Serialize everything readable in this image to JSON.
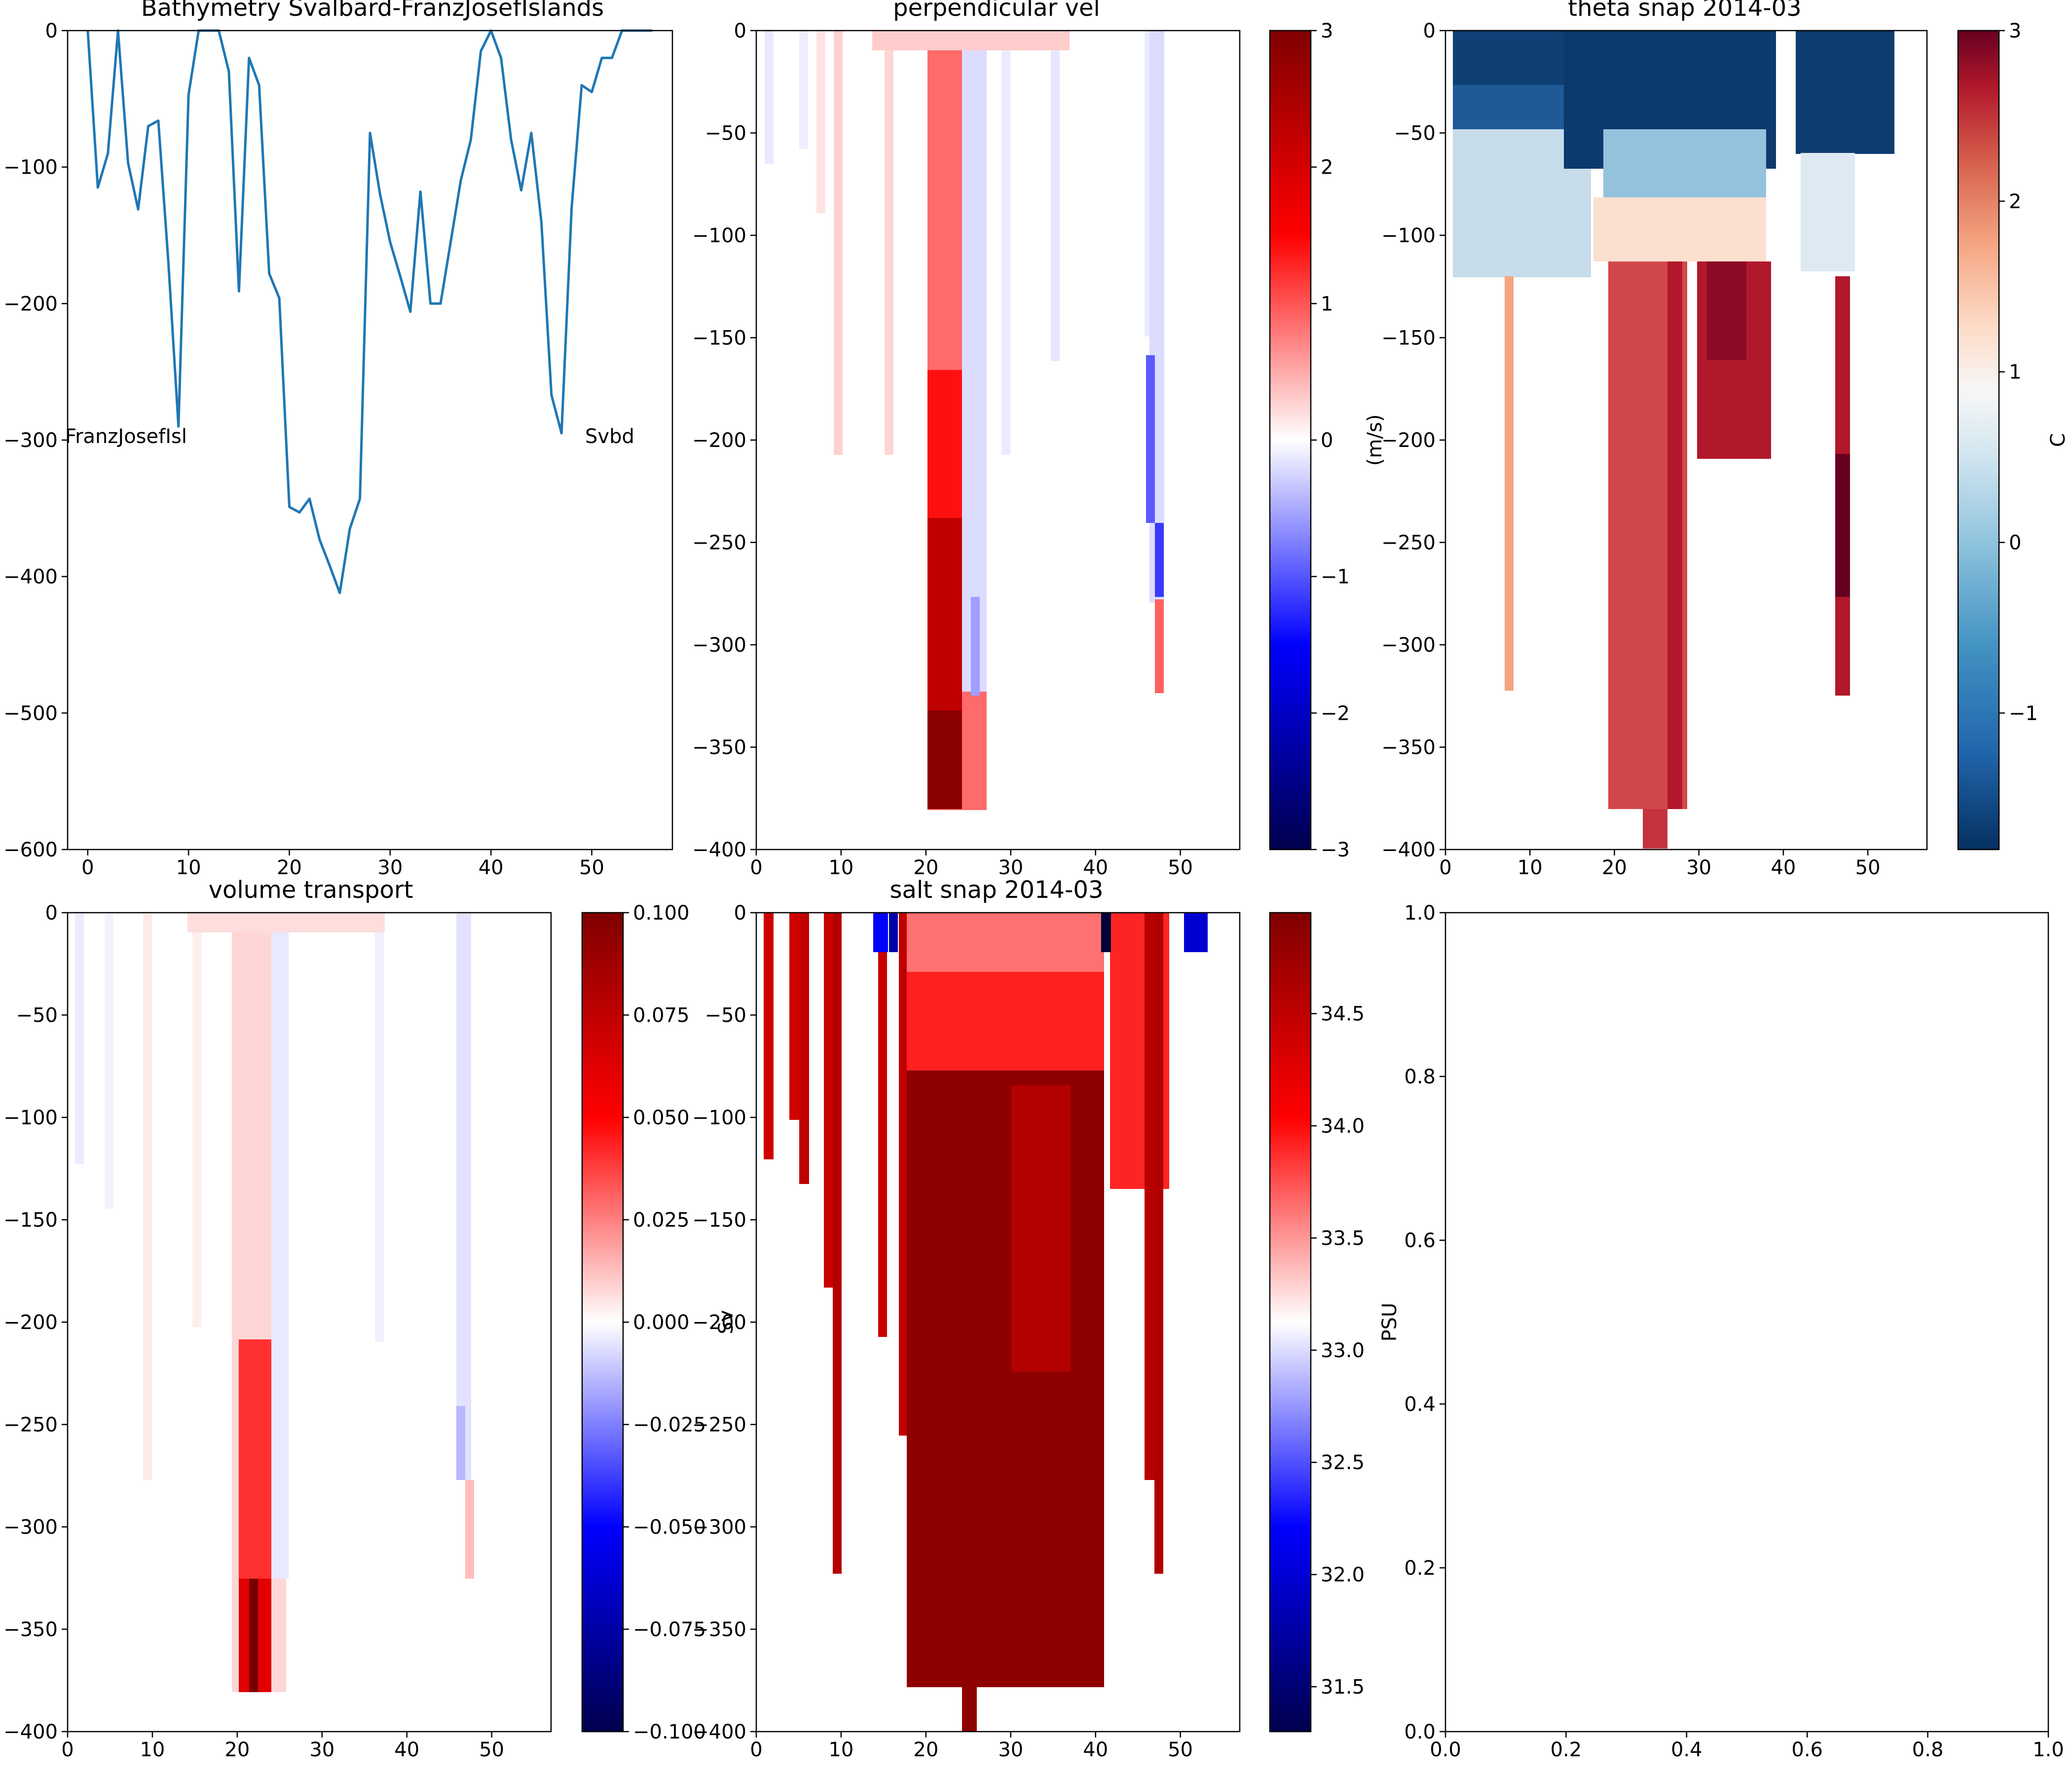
{
  "figure": {
    "panels": [
      {
        "id": "bathy",
        "title": "Bathymetry Svalbard-FranzJosefIslands"
      },
      {
        "id": "vel",
        "title": "perpendicular vel"
      },
      {
        "id": "theta",
        "title": "theta snap 2014-03"
      },
      {
        "id": "vol",
        "title": "volume transport"
      },
      {
        "id": "salt",
        "title": "salt snap 2014-03"
      },
      {
        "id": "empty",
        "title": ""
      }
    ]
  },
  "chart_data": [
    {
      "type": "line",
      "title": "Bathymetry Svalbard-FranzJosefIslands",
      "xlabel": "",
      "ylabel": "",
      "xlim": [
        -2,
        58
      ],
      "ylim": [
        -600,
        0
      ],
      "xticks": [
        0,
        10,
        20,
        30,
        40,
        50
      ],
      "yticks": [
        0,
        -100,
        -200,
        -300,
        -400,
        -500,
        -600
      ],
      "annotations": [
        {
          "text": "FranzJosefIsl",
          "x": -3,
          "y": -300
        },
        {
          "text": "Svbd",
          "x": 50,
          "y": -300
        }
      ],
      "line_color": "#1f77b4",
      "series": [
        {
          "x": [
            0,
            1,
            2,
            3,
            4,
            5,
            6,
            7,
            8,
            9,
            10,
            11,
            12,
            13,
            14,
            15,
            16,
            17,
            18,
            19,
            20,
            21,
            22,
            23,
            24,
            25,
            26,
            27,
            28,
            29,
            30,
            31,
            32,
            33,
            34,
            35,
            36,
            37,
            38,
            39,
            40,
            41,
            42,
            43,
            44,
            45,
            46,
            47,
            48,
            49,
            50,
            51,
            52,
            53,
            54,
            55,
            56
          ],
          "y": [
            0,
            -115,
            -90,
            0,
            -97,
            -131,
            -70,
            -66,
            -170,
            -290,
            -47,
            0,
            0,
            0,
            -30,
            -191,
            -20,
            -40,
            -178,
            -196,
            -349,
            -353,
            -343,
            -373,
            -392,
            -412,
            -365,
            -343,
            -75,
            -120,
            -155,
            -180,
            -206,
            -118,
            -200,
            -200,
            -155,
            -110,
            -80,
            -15,
            0,
            -20,
            -80,
            -117,
            -75,
            -140,
            -267,
            -295,
            -130,
            -40,
            -45,
            -20,
            -20,
            0,
            0,
            0,
            0
          ]
        }
      ]
    },
    {
      "type": "heatmap",
      "title": "perpendicular vel",
      "xlim": [
        0,
        57
      ],
      "ylim": [
        -400,
        0
      ],
      "xticks": [
        0,
        10,
        20,
        30,
        40,
        50
      ],
      "yticks": [
        0,
        -50,
        -100,
        -150,
        -200,
        -250,
        -300,
        -350,
        -400
      ],
      "colorbar": {
        "label": "(m/s)",
        "range": [
          -3,
          3
        ],
        "ticks": [
          3,
          2,
          1,
          0,
          -1,
          -2,
          -3
        ],
        "cmap": "seismic"
      },
      "columns": [
        {
          "x": 0,
          "bottom": -120
        },
        {
          "x": 3,
          "bottom": -110
        },
        {
          "x": 8,
          "bottom": -200
        },
        {
          "x": 9,
          "bottom": -330
        },
        {
          "x": 15,
          "bottom": -210
        },
        {
          "x": 20,
          "bottom": -380
        },
        {
          "x": 21,
          "bottom": -380
        },
        {
          "x": 22,
          "bottom": -380
        },
        {
          "x": 23,
          "bottom": -325
        },
        {
          "x": 24,
          "bottom": -325
        },
        {
          "x": 25,
          "bottom": -280
        },
        {
          "x": 28,
          "bottom": -180
        },
        {
          "x": 32,
          "bottom": -190
        },
        {
          "x": 35,
          "bottom": -160
        },
        {
          "x": 45,
          "bottom": -160
        },
        {
          "x": 46,
          "bottom": -280
        },
        {
          "x": 47,
          "bottom": -325
        }
      ],
      "notable_values": [
        {
          "x": 22,
          "z": -385,
          "v": 3
        },
        {
          "x": 21,
          "z": -200,
          "v": 1.8
        },
        {
          "x": 46,
          "z": -250,
          "v": -1.6
        },
        {
          "x": 47,
          "z": -300,
          "v": 1
        }
      ]
    },
    {
      "type": "heatmap",
      "title": "theta snap 2014-03",
      "xlim": [
        0,
        57
      ],
      "ylim": [
        -400,
        0
      ],
      "xticks": [
        0,
        10,
        20,
        30,
        40,
        50
      ],
      "yticks": [
        0,
        -50,
        -100,
        -150,
        -200,
        -250,
        -300,
        -350,
        -400
      ],
      "colorbar": {
        "label": "C",
        "range": [
          -1.8,
          3
        ],
        "ticks": [
          3,
          2,
          1,
          0,
          -1
        ],
        "cmap": "RdBu_r"
      },
      "columns": [
        {
          "x": 0,
          "bottom": -120
        },
        {
          "x": 3,
          "bottom": -110
        },
        {
          "x": 8,
          "bottom": -200
        },
        {
          "x": 9,
          "bottom": -330
        },
        {
          "x": 15,
          "bottom": -210
        },
        {
          "x": 20,
          "bottom": -380
        },
        {
          "x": 24,
          "bottom": -400
        },
        {
          "x": 26,
          "bottom": -380
        },
        {
          "x": 30,
          "bottom": -210
        },
        {
          "x": 33,
          "bottom": -210
        },
        {
          "x": 46,
          "bottom": -330
        }
      ],
      "notable_values": [
        {
          "x": 5,
          "z": -10,
          "v": -1.8
        },
        {
          "x": 25,
          "z": -250,
          "v": 2.5
        },
        {
          "x": 46,
          "z": -280,
          "v": 3
        },
        {
          "x": 8,
          "z": -250,
          "v": 1.2
        }
      ]
    },
    {
      "type": "heatmap",
      "title": "volume transport",
      "xlim": [
        0,
        57
      ],
      "ylim": [
        -400,
        0
      ],
      "xticks": [
        0,
        10,
        20,
        30,
        40,
        50
      ],
      "yticks": [
        0,
        -50,
        -100,
        -150,
        -200,
        -250,
        -300,
        -350,
        -400
      ],
      "colorbar": {
        "label": "Sv",
        "range": [
          -0.1,
          0.1
        ],
        "ticks": [
          "0.100",
          "0.075",
          "0.050",
          "0.025",
          "0.000",
          "−0.025",
          "−0.050",
          "−0.075",
          "−0.100"
        ],
        "cmap": "seismic"
      },
      "columns": [
        {
          "x": 0,
          "bottom": -120
        },
        {
          "x": 9,
          "bottom": -280
        },
        {
          "x": 20,
          "bottom": -380
        },
        {
          "x": 22,
          "bottom": -380
        },
        {
          "x": 24,
          "bottom": -325
        },
        {
          "x": 46,
          "bottom": -280
        },
        {
          "x": 47,
          "bottom": -325
        }
      ],
      "notable_values": [
        {
          "x": 22,
          "z": -350,
          "v": 0.1
        },
        {
          "x": 21,
          "z": -300,
          "v": 0.07
        },
        {
          "x": 46,
          "z": -250,
          "v": -0.03
        }
      ]
    },
    {
      "type": "heatmap",
      "title": "salt snap 2014-03",
      "xlim": [
        0,
        57
      ],
      "ylim": [
        -400,
        0
      ],
      "xticks": [
        0,
        10,
        20,
        30,
        40,
        50
      ],
      "yticks": [
        0,
        -50,
        -100,
        -150,
        -200,
        -250,
        -300,
        -350,
        -400
      ],
      "colorbar": {
        "label": "PSU",
        "range": [
          31.3,
          34.95
        ],
        "ticks": [
          "34.5",
          "34.0",
          "33.5",
          "33.0",
          "32.5",
          "32.0",
          "31.5"
        ],
        "cmap": "seismic"
      },
      "columns": [
        {
          "x": 0,
          "bottom": -120
        },
        {
          "x": 3,
          "bottom": -110
        },
        {
          "x": 5,
          "bottom": -130
        },
        {
          "x": 8,
          "bottom": -185
        },
        {
          "x": 9,
          "bottom": -325
        },
        {
          "x": 15,
          "bottom": -210
        },
        {
          "x": 18,
          "bottom": -185
        },
        {
          "x": 20,
          "bottom": -380
        },
        {
          "x": 24,
          "bottom": -400
        },
        {
          "x": 26,
          "bottom": -380
        },
        {
          "x": 30,
          "bottom": -185
        },
        {
          "x": 33,
          "bottom": -210
        },
        {
          "x": 36,
          "bottom": -160
        },
        {
          "x": 45,
          "bottom": -150
        },
        {
          "x": 46,
          "bottom": -280
        },
        {
          "x": 47,
          "bottom": -325
        }
      ],
      "notable_values": [
        {
          "x": 16,
          "z": -10,
          "v": 31.3
        },
        {
          "x": 51,
          "z": -10,
          "v": 31.5
        },
        {
          "x": 24,
          "z": -300,
          "v": 34.9
        }
      ]
    },
    {
      "type": "scatter",
      "title": "",
      "xlim": [
        0,
        1
      ],
      "ylim": [
        0,
        1
      ],
      "xticks": [
        "0.0",
        "0.2",
        "0.4",
        "0.6",
        "0.8",
        "1.0"
      ],
      "yticks": [
        "0.0",
        "0.2",
        "0.4",
        "0.6",
        "0.8",
        "1.0"
      ],
      "series": []
    }
  ]
}
